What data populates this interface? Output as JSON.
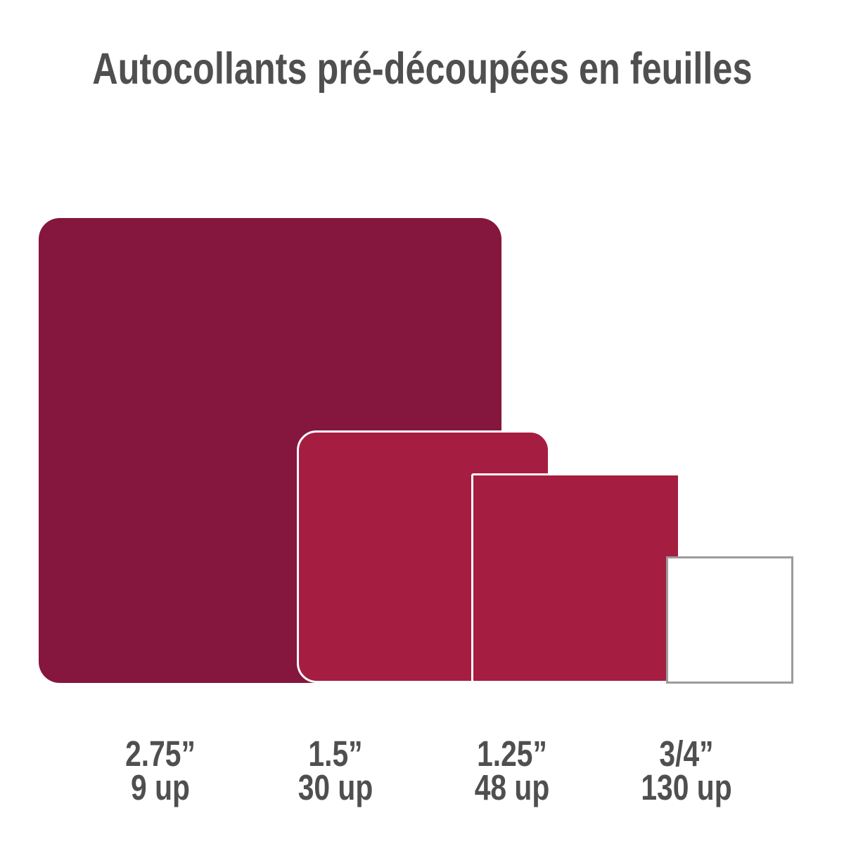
{
  "title": "Autocollants pré-découpées en feuilles",
  "colors": {
    "background": "#FFFFFF",
    "text": "#4F4F4F",
    "large_square_fill": "#85163E",
    "medium_square_fill": "#A51E41",
    "overlap_stroke": "#FFFFFF",
    "white_square_border": "#9B9B9B"
  },
  "squares": [
    {
      "name": "2-75-inch",
      "size_label": "2.75”",
      "count_label": "9 up",
      "fill": "#85163E",
      "stroke": "none"
    },
    {
      "name": "1-5-inch",
      "size_label": "1.5”",
      "count_label": "30 up",
      "fill": "#A51E41",
      "stroke": "#FFFFFF"
    },
    {
      "name": "1-25-inch",
      "size_label": "1.25”",
      "count_label": "48 up",
      "fill": "#A51E41",
      "stroke": "#FFFFFF"
    },
    {
      "name": "3-4-inch",
      "size_label": "3/4”",
      "count_label": "130 up",
      "fill": "#FFFFFF",
      "stroke": "#9B9B9B"
    }
  ]
}
